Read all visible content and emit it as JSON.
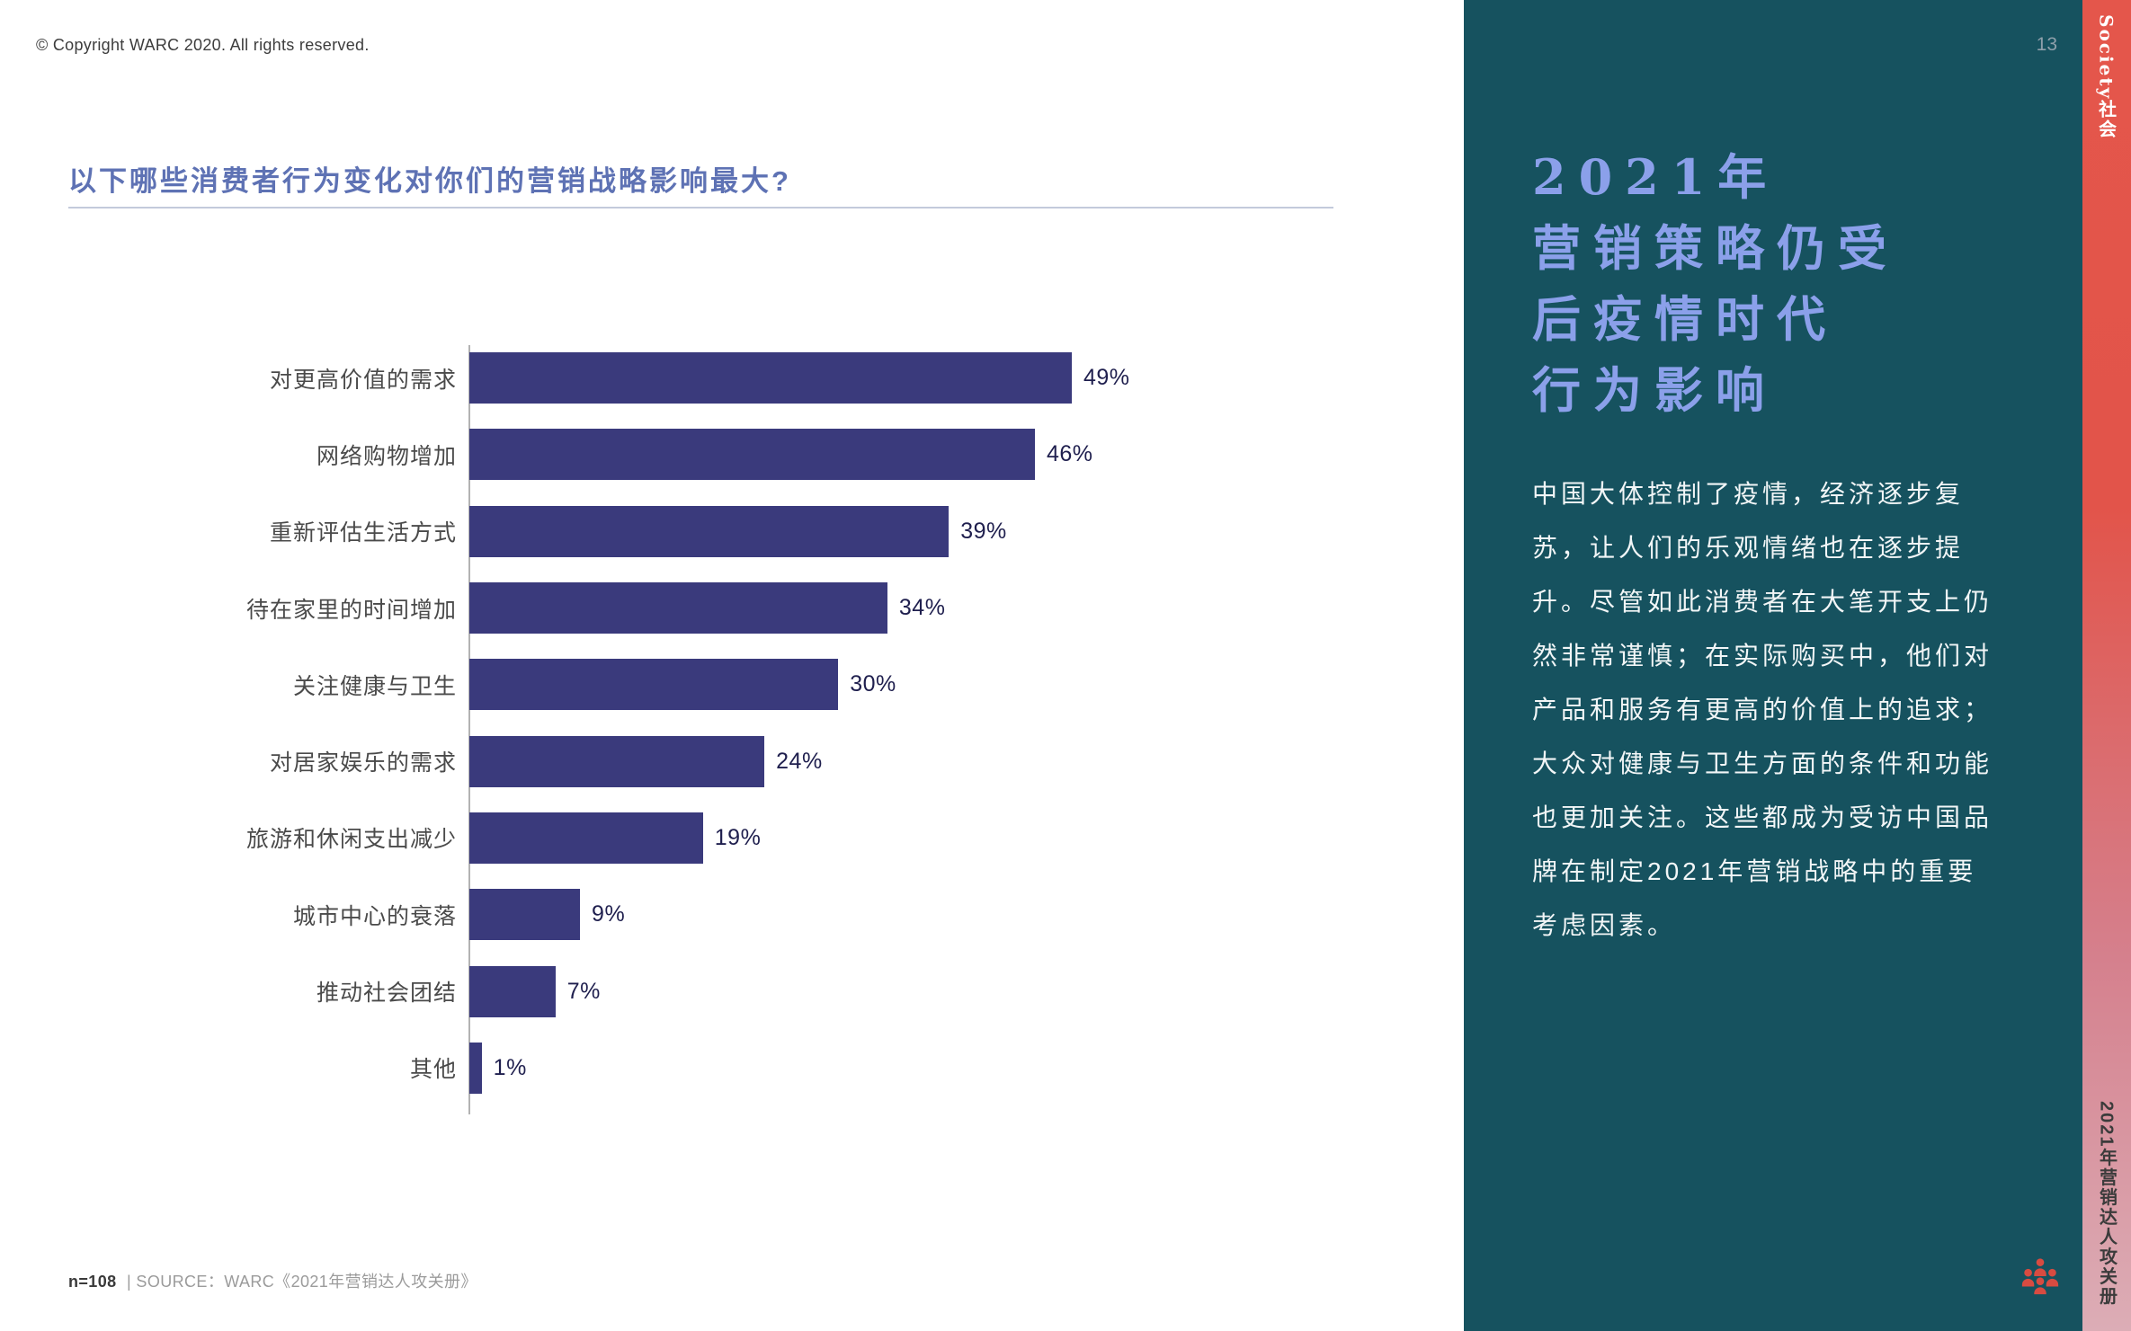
{
  "page": {
    "copyright": "© Copyright WARC 2020. All rights reserved.",
    "page_number": "13"
  },
  "chart": {
    "title": "以下哪些消费者行为变化对你们的营销战略影响最大?",
    "footnote_n": "n=108",
    "footnote_source": "| SOURCE：WARC《2021年营销达人攻关册》"
  },
  "chart_data": {
    "type": "bar",
    "orientation": "horizontal",
    "title": "以下哪些消费者行为变化对你们的营销战略影响最大?",
    "categories": [
      "对更高价值的需求",
      "网络购物增加",
      "重新评估生活方式",
      "待在家里的时间增加",
      "关注健康与卫生",
      "对居家娱乐的需求",
      "旅游和休闲支出减少",
      "城市中心的衰落",
      "推动社会团结",
      "其他"
    ],
    "values": [
      49,
      46,
      39,
      34,
      30,
      24,
      19,
      9,
      7,
      1
    ],
    "value_suffix": "%",
    "xlim": [
      0,
      55
    ],
    "grid": false,
    "legend": "none",
    "bar_color": "#3a3a7c",
    "sample": "n=108",
    "source": "WARC《2021年营销达人攻关册》"
  },
  "sidebar": {
    "heading_lines": [
      "2021年",
      "营销策略仍受",
      "后疫情时代",
      "行为影响"
    ],
    "body": "中国大体控制了疫情，经济逐步复苏，让人们的乐观情绪也在逐步提升。尽管如此消费者在大笔开支上仍然非常谨慎；在实际购买中，他们对产品和服务有更高的价值上的追求；大众对健康与卫生方面的条件和功能也更加关注。这些都成为受访中国品牌在制定2021年营销战略中的重要考虑因素。"
  },
  "edge_strip": {
    "top_label": "Society社会",
    "bottom_label": "2021年营销达人攻关册"
  },
  "colors": {
    "bar": "#3a3a7c",
    "title_blue": "#5e72b4",
    "panel_teal": "#16525f",
    "heading_periwinkle": "#8ba0ea",
    "strip_red": "#e4564b",
    "strip_pink": "#dcadb6",
    "logo_coral": "#d84b41"
  }
}
